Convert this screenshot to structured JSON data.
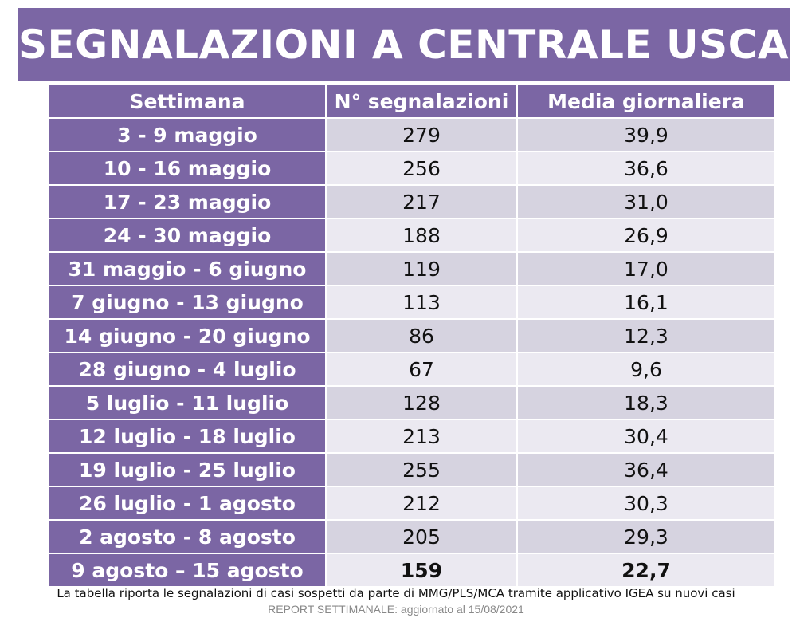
{
  "title": "SEGNALAZIONI A CENTRALE USCA",
  "table": {
    "headers": [
      "Settimana",
      "N° segnalazioni",
      "Media giornaliera"
    ],
    "rows": [
      [
        "3 - 9 maggio",
        "279",
        "39,9"
      ],
      [
        "10 - 16 maggio",
        "256",
        "36,6"
      ],
      [
        "17 - 23 maggio",
        "217",
        "31,0"
      ],
      [
        "24 - 30 maggio",
        "188",
        "26,9"
      ],
      [
        "31 maggio - 6 giugno",
        "119",
        "17,0"
      ],
      [
        "7 giugno - 13 giugno",
        "113",
        "16,1"
      ],
      [
        "14 giugno - 20 giugno",
        "86",
        "12,3"
      ],
      [
        "28 giugno - 4 luglio",
        "67",
        "9,6"
      ],
      [
        "5 luglio - 11 luglio",
        "128",
        "18,3"
      ],
      [
        "12 luglio - 18 luglio",
        "213",
        "30,4"
      ],
      [
        "19 luglio - 25 luglio",
        "255",
        "36,4"
      ],
      [
        "26 luglio - 1 agosto",
        "212",
        "30,3"
      ],
      [
        "2 agosto - 8 agosto",
        "205",
        "29,3"
      ],
      [
        "9 agosto – 15 agosto",
        "159",
        "22,7"
      ]
    ]
  },
  "footnote": "La tabella riporta le segnalazioni di casi sospetti da parte di MMG/PLS/MCA tramite applicativo IGEA su nuovi casi",
  "updated": "REPORT SETTIMANALE: aggiornato al 15/08/2021",
  "colors": {
    "header_purple": "#7b66a4",
    "row_dark": "#d6d3e0",
    "row_light": "#ebe9f1"
  }
}
